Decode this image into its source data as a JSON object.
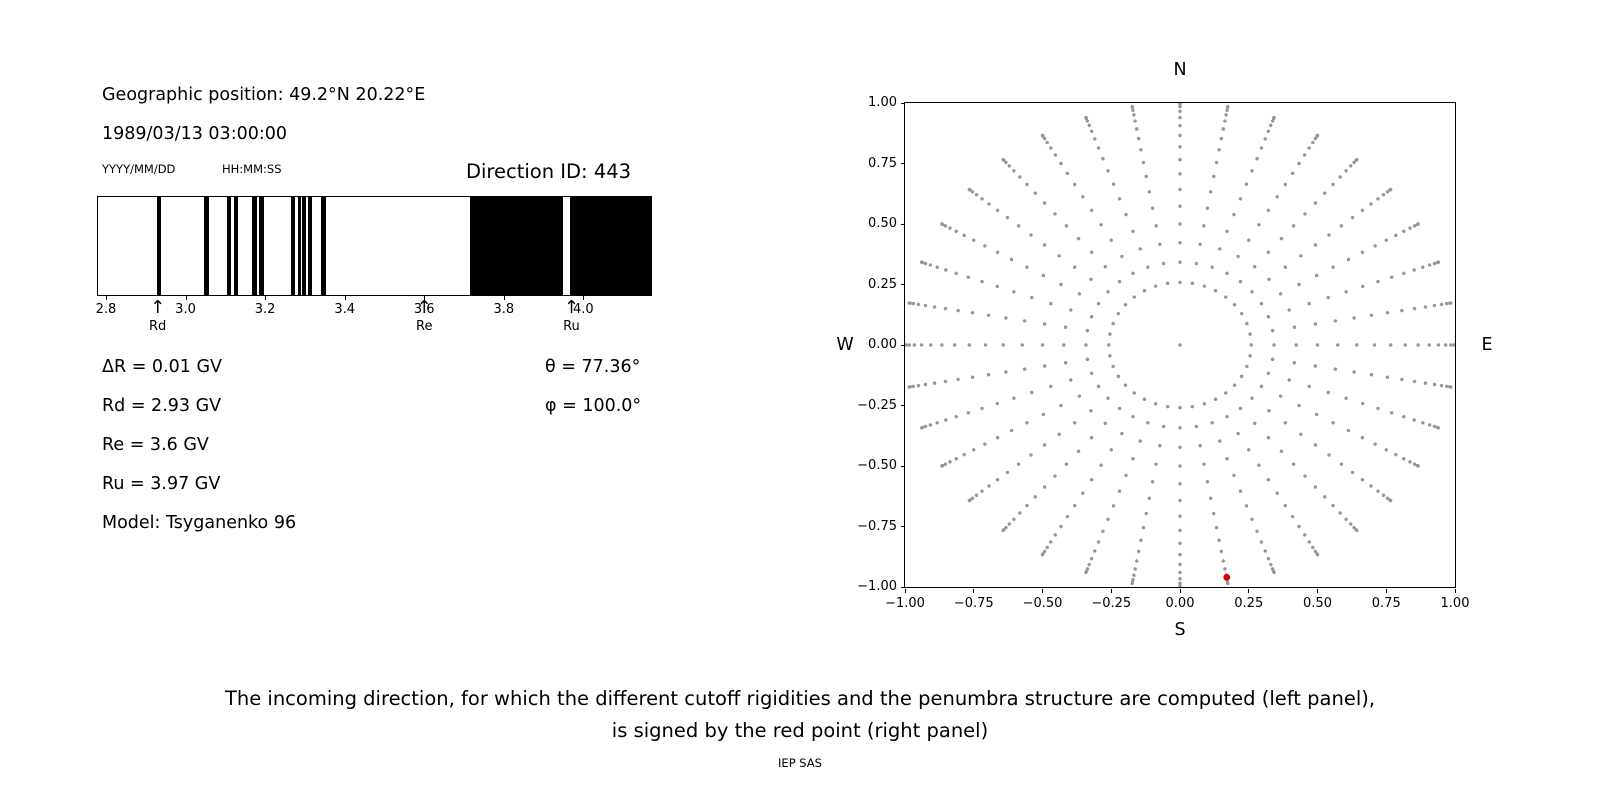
{
  "left_panel": {
    "geo_position": "Geographic position: 49.2°N 20.22°E",
    "datetime": "1989/03/13 03:00:00",
    "date_format_label": "YYYY/MM/DD",
    "time_format_label": "HH:MM:SS",
    "direction_id_label": "Direction ID: 443",
    "info": {
      "delta_r": "ΔR = 0.01 GV",
      "rd": "Rd = 2.93 GV",
      "re": "Re = 3.6 GV",
      "ru": "Ru = 3.97 GV",
      "model": "Model: Tsyganenko 96",
      "theta": "θ = 77.36°",
      "phi": "φ = 100.0°"
    }
  },
  "caption": {
    "line1": "The incoming direction, for which the different cutoff rigidities and the penumbra structure are computed (left panel),",
    "line2": "is signed by the red point (right panel)"
  },
  "footer_credit": "IEP SAS",
  "icons": {
    "up_arrow": "↑"
  },
  "chart_data": [
    {
      "type": "bar",
      "xlim": [
        2.78,
        4.17
      ],
      "xticks": {
        "values": [
          2.8,
          3.0,
          3.2,
          3.4,
          3.6,
          3.8,
          4.0
        ],
        "labels": [
          "2.8",
          "3.0",
          "3.2",
          "3.4",
          "3.6",
          "3.8",
          "4.0"
        ]
      },
      "bands_gv": [
        [
          2.928,
          2.938
        ],
        [
          3.046,
          3.058
        ],
        [
          3.104,
          3.114
        ],
        [
          3.121,
          3.131
        ],
        [
          3.166,
          3.179
        ],
        [
          3.184,
          3.197
        ],
        [
          3.264,
          3.274
        ],
        [
          3.282,
          3.289
        ],
        [
          3.294,
          3.304
        ],
        [
          3.309,
          3.317
        ],
        [
          3.34,
          3.352
        ],
        [
          3.716,
          3.95
        ],
        [
          3.967,
          4.17
        ]
      ],
      "markers": [
        {
          "label": "Rd",
          "x": 2.93
        },
        {
          "label": "Re",
          "x": 3.6
        },
        {
          "label": "Ru",
          "x": 3.97
        }
      ],
      "bar_color": "#000000"
    },
    {
      "type": "scatter",
      "xlim": [
        -1,
        1
      ],
      "ylim": [
        -1,
        1
      ],
      "xticks": {
        "values": [
          -1,
          -0.75,
          -0.5,
          -0.25,
          0,
          0.25,
          0.5,
          0.75,
          1
        ],
        "labels": [
          "−1.00",
          "−0.75",
          "−0.50",
          "−0.25",
          "0.00",
          "0.25",
          "0.50",
          "0.75",
          "1.00"
        ]
      },
      "yticks": {
        "values": [
          1,
          0.75,
          0.5,
          0.25,
          0,
          -0.25,
          -0.5,
          -0.75,
          -1
        ],
        "labels": [
          "1.00",
          "0.75",
          "0.50",
          "0.25",
          "0.00",
          "−0.25",
          "−0.50",
          "−0.75",
          "−1.00"
        ]
      },
      "compass": {
        "top": "N",
        "bottom": "S",
        "left": "W",
        "right": "E"
      },
      "dot_color": "#969696",
      "spokes": {
        "azimuth_start_deg": 0,
        "azimuth_step_deg": 10,
        "count": 36,
        "zenith_deg": [
          15,
          20,
          25,
          30,
          35,
          40,
          45,
          50,
          55,
          60,
          65,
          70,
          75,
          80,
          85,
          90
        ],
        "radius_mapping": "sin(zenith)",
        "center_dot": true
      },
      "red_point": {
        "x": 0.17,
        "y": -0.96,
        "color": "#dd0000"
      }
    }
  ]
}
